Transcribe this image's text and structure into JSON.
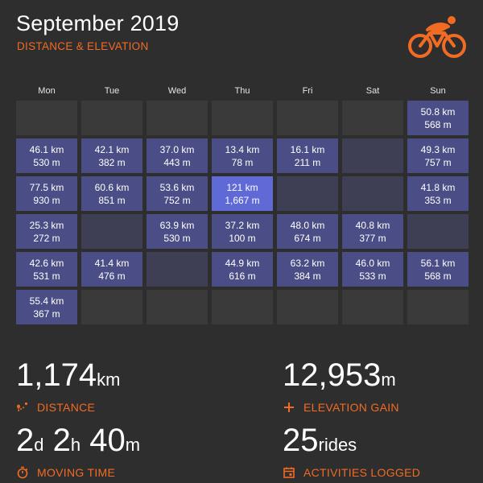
{
  "header": {
    "title": "September 2019",
    "subtitle": "DISTANCE & ELEVATION"
  },
  "colors": {
    "accent": "#f26b22",
    "background": "#2e2e2f",
    "empty_cell": "#3a3a3b",
    "ride_cell": "#4b4e86",
    "peak_cell": "#5f6ad6"
  },
  "logo_icon": "cyclist-icon",
  "calendar": {
    "weekdays": [
      "Mon",
      "Tue",
      "Wed",
      "Thu",
      "Fri",
      "Sat",
      "Sun"
    ],
    "weeks": [
      [
        null,
        null,
        null,
        null,
        null,
        null,
        {
          "km": "50.8 km",
          "m": "568 m"
        }
      ],
      [
        {
          "km": "46.1 km",
          "m": "530 m"
        },
        {
          "km": "42.1 km",
          "m": "382 m"
        },
        {
          "km": "37.0 km",
          "m": "443 m"
        },
        {
          "km": "13.4 km",
          "m": "78 m"
        },
        {
          "km": "16.1 km",
          "m": "211 m"
        },
        {
          "rest": true
        },
        {
          "km": "49.3 km",
          "m": "757 m"
        }
      ],
      [
        {
          "km": "77.5 km",
          "m": "930 m"
        },
        {
          "km": "60.6 km",
          "m": "851 m"
        },
        {
          "km": "53.6 km",
          "m": "752 m"
        },
        {
          "km": "121 km",
          "m": "1,667 m"
        },
        {
          "rest": true
        },
        {
          "rest": true
        },
        {
          "km": "41.8 km",
          "m": "353 m"
        }
      ],
      [
        {
          "km": "25.3 km",
          "m": "272 m"
        },
        {
          "rest": true
        },
        {
          "km": "63.9 km",
          "m": "530 m"
        },
        {
          "km": "37.2 km",
          "m": "100 m"
        },
        {
          "km": "48.0 km",
          "m": "674 m"
        },
        {
          "km": "40.8 km",
          "m": "377 m"
        },
        {
          "rest": true
        }
      ],
      [
        {
          "km": "42.6 km",
          "m": "531 m"
        },
        {
          "km": "41.4 km",
          "m": "476 m"
        },
        {
          "rest": true
        },
        {
          "km": "44.9 km",
          "m": "616 m"
        },
        {
          "km": "63.2 km",
          "m": "384 m"
        },
        {
          "km": "46.0 km",
          "m": "533 m"
        },
        {
          "km": "56.1 km",
          "m": "568 m"
        }
      ],
      [
        {
          "km": "55.4 km",
          "m": "367 m"
        },
        null,
        null,
        null,
        null,
        null,
        null
      ]
    ]
  },
  "stats": {
    "distance": {
      "value": "1,174",
      "unit": "km",
      "label": "DISTANCE",
      "icon": "route-icon"
    },
    "elevation": {
      "value": "12,953",
      "unit": "m",
      "label": "ELEVATION GAIN",
      "icon": "plus-icon"
    },
    "moving_time": {
      "d": "2",
      "d_unit": "d",
      "h": "2",
      "h_unit": "h",
      "m": "40",
      "m_unit": "m",
      "label": "MOVING TIME",
      "icon": "stopwatch-icon"
    },
    "activities": {
      "value": "25",
      "unit": "rides",
      "label": "ACTIVITIES LOGGED",
      "icon": "calendar-icon"
    }
  }
}
